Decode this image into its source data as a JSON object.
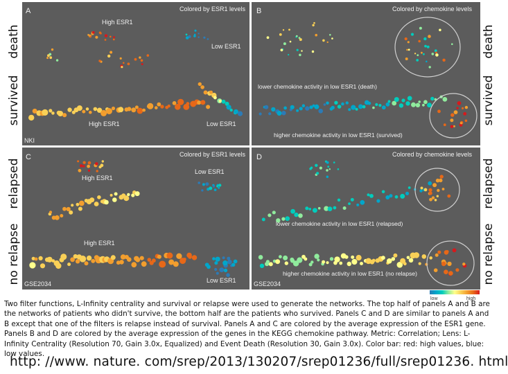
{
  "side_labels": {
    "top_death": "death",
    "top_survived": "survived",
    "left_relapsed": "relapsed",
    "left_no_relapse": "no relapse",
    "right_death": "death",
    "right_survived": "survived",
    "right_relapsed": "relapsed",
    "right_no_relapse": "no relapse"
  },
  "panels": {
    "A": {
      "letter": "A",
      "title": "Colored by ESR1 levels",
      "labels": [
        "High ESR1",
        "Low ESR1",
        "High ESR1",
        "Low ESR1"
      ],
      "dataset": "NKI"
    },
    "B": {
      "letter": "B",
      "title": "Colored by chemokine levels",
      "labels": [
        "lower chemokine activity in low ESR1 (death)",
        "higher chemokine activity in low ESR1 (survived)"
      ]
    },
    "C": {
      "letter": "C",
      "title": "Colored by ESR1 levels",
      "labels": [
        "High ESR1",
        "Low ESR1",
        "High ESR1",
        "Low ESR1"
      ],
      "dataset": "GSE2034"
    },
    "D": {
      "letter": "D",
      "title": "Colored by chemokine levels",
      "labels": [
        "lower chemokine activity in low ESR1 (relapsed)",
        "higher chemokine activity in low ESR1 (no relapse)"
      ],
      "dataset": "GSE2034"
    }
  },
  "colorbar": {
    "low": "low",
    "high": "high",
    "colors": [
      "#2c7bb6",
      "#00a6ca",
      "#00ccbc",
      "#90eb9d",
      "#ffff8c",
      "#f9d057",
      "#f29e2e",
      "#e76818",
      "#d7191c"
    ]
  },
  "colors": {
    "panel_bg": "#5c5c5c",
    "panel_text": "#f2f2f2"
  },
  "caption": "Two filter functions, L-Infinity centrality and survival or relapse were used to generate the networks. The top half of panels A and B are the networks of patients who didn't survive, the bottom half are the patients who survived. Panels C and D are similar to panels A and B except that one of the filters is relapse instead of survival. Panels A and C are colored by the average expression of the ESR1 gene. Panels B and D are colored by the average expression of the genes in the KEGG chemokine pathway. Metric: Correlation; Lens: L-Infinity Centrality (Resolution 70, Gain 3.0x, Equalized) and Event Death (Resolution 30, Gain 3.0x). Color bar: red: high values, blue: low values.",
  "source_url": "http: //www. nature. com/srep/2013/130207/srep01236/full/srep01236. html"
}
